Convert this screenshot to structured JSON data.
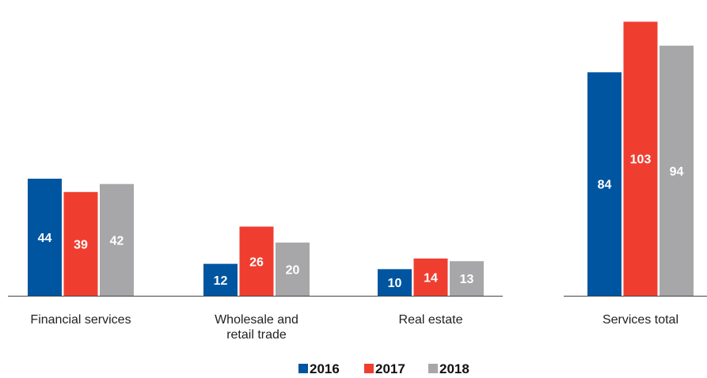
{
  "chart_data": [
    {
      "type": "bar",
      "categories": [
        "Financial services",
        "Wholesale and retail trade",
        "Real estate"
      ],
      "series": [
        {
          "name": "2016",
          "color": "#0055a0",
          "values": [
            44,
            12,
            10
          ]
        },
        {
          "name": "2017",
          "color": "#ef3e30",
          "values": [
            39,
            26,
            14
          ]
        },
        {
          "name": "2018",
          "color": "#a7a7a9",
          "values": [
            42,
            20,
            13
          ]
        }
      ],
      "title": "",
      "xlabel": "",
      "ylabel": "",
      "ylim": [
        0,
        107
      ],
      "grid": false,
      "legend": "bottom-center"
    },
    {
      "type": "bar",
      "categories": [
        "Services total"
      ],
      "series": [
        {
          "name": "2016",
          "color": "#0055a0",
          "values": [
            84
          ]
        },
        {
          "name": "2017",
          "color": "#ef3e30",
          "values": [
            103
          ]
        },
        {
          "name": "2018",
          "color": "#a7a7a9",
          "values": [
            94
          ]
        }
      ],
      "title": "",
      "xlabel": "",
      "ylabel": "",
      "ylim": [
        0,
        107
      ],
      "grid": false,
      "legend": "bottom-center"
    }
  ],
  "legend": {
    "items": [
      {
        "label": "2016",
        "color": "#0055a0"
      },
      {
        "label": "2017",
        "color": "#ef3e30"
      },
      {
        "label": "2018",
        "color": "#a7a7a9"
      }
    ]
  }
}
